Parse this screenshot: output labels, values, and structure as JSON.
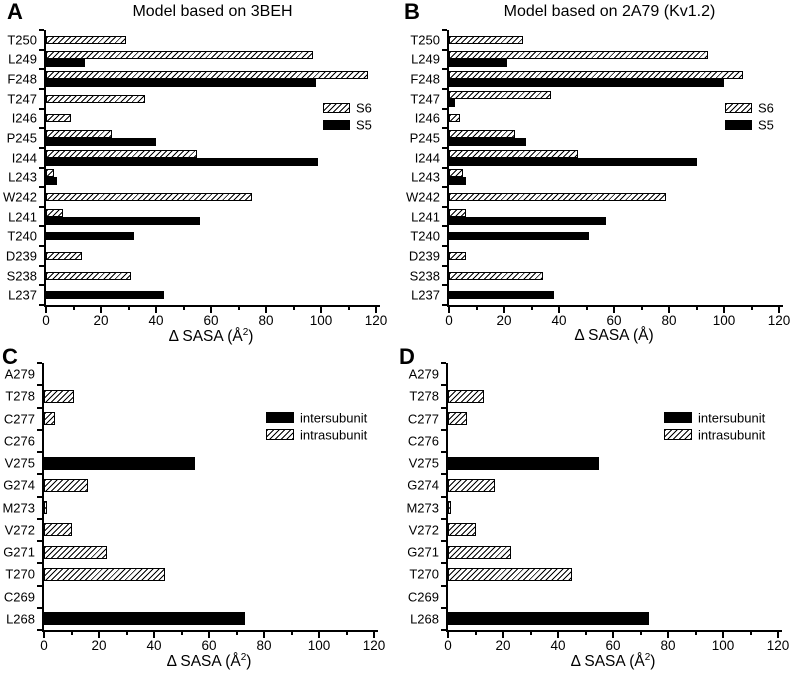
{
  "figure_description": "Four-panel grouped horizontal bar figure of solvent-accessible surface area changes",
  "colors": {
    "bar_solid": "#000000",
    "hatch_line": "#000000",
    "background": "#ffffff",
    "text": "#000000"
  },
  "chart_data": [
    {
      "panel": "A",
      "type": "bar",
      "orientation": "horizontal",
      "title": "Model based on 3BEH",
      "xlabel": "Δ SASA (Å²)",
      "xlabel_parts": {
        "pre": "Δ SASA (Å",
        "sup": "2",
        "post": ")"
      },
      "xlim": [
        0,
        120
      ],
      "xticks": [
        0,
        20,
        40,
        60,
        80,
        100,
        120
      ],
      "minor_tick_step": 10,
      "categories": [
        "T250",
        "L249",
        "F248",
        "T247",
        "I246",
        "P245",
        "I244",
        "L243",
        "W242",
        "L241",
        "T240",
        "D239",
        "S238",
        "L237"
      ],
      "series": [
        {
          "name": "S6",
          "style": "hatched",
          "values": [
            29,
            97,
            117,
            36,
            9,
            24,
            55,
            3,
            75,
            6,
            0,
            13,
            31,
            0
          ]
        },
        {
          "name": "S5",
          "style": "solid",
          "values": [
            0,
            14,
            98,
            0,
            0,
            40,
            99,
            4,
            0,
            56,
            32,
            0,
            0,
            43
          ]
        }
      ],
      "legend_position": "upper-right-inside"
    },
    {
      "panel": "B",
      "type": "bar",
      "orientation": "horizontal",
      "title": "Model based on 2A79 (Kv1.2)",
      "xlabel": "Δ SASA (Å)",
      "xlabel_parts": {
        "pre": "Δ SASA (Å",
        "sup": "",
        "post": ")"
      },
      "xlim": [
        0,
        120
      ],
      "xticks": [
        0,
        20,
        40,
        60,
        80,
        100,
        120
      ],
      "minor_tick_step": 10,
      "categories": [
        "T250",
        "L249",
        "F248",
        "T247",
        "I246",
        "P245",
        "I244",
        "L243",
        "W242",
        "L241",
        "T240",
        "D239",
        "S238",
        "L237"
      ],
      "series": [
        {
          "name": "S6",
          "style": "hatched",
          "values": [
            27,
            94,
            107,
            37,
            4,
            24,
            47,
            5,
            79,
            6,
            0,
            6,
            34,
            0
          ]
        },
        {
          "name": "S5",
          "style": "solid",
          "values": [
            0,
            21,
            100,
            2,
            0,
            28,
            90,
            6,
            0,
            57,
            51,
            0,
            0,
            38
          ]
        }
      ],
      "legend_position": "upper-right-inside"
    },
    {
      "panel": "C",
      "type": "bar",
      "orientation": "horizontal",
      "xlabel": "Δ SASA (Å²)",
      "xlabel_parts": {
        "pre": "Δ SASA (Å",
        "sup": "2",
        "post": ")"
      },
      "xlim": [
        0,
        120
      ],
      "xticks": [
        0,
        20,
        40,
        60,
        80,
        100,
        120
      ],
      "minor_tick_step": 10,
      "categories": [
        "A279",
        "T278",
        "C277",
        "C276",
        "V275",
        "G274",
        "M273",
        "V272",
        "G271",
        "T270",
        "C269",
        "L268"
      ],
      "series": [
        {
          "name": "intersubunit",
          "style": "solid",
          "values": [
            0,
            0,
            0,
            0,
            55,
            0,
            0,
            0,
            0,
            0,
            0,
            73
          ]
        },
        {
          "name": "intrasubunit",
          "style": "hatched",
          "values": [
            0,
            11,
            4,
            0,
            0,
            16,
            1,
            10,
            23,
            44,
            0,
            0
          ]
        }
      ],
      "legend_position": "upper-right-inside"
    },
    {
      "panel": "D",
      "type": "bar",
      "orientation": "horizontal",
      "xlabel": "Δ SASA (Å²)",
      "xlabel_parts": {
        "pre": "Δ SASA (Å",
        "sup": "2",
        "post": ")"
      },
      "xlim": [
        0,
        120
      ],
      "xticks": [
        0,
        20,
        40,
        60,
        80,
        100,
        120
      ],
      "minor_tick_step": 10,
      "categories": [
        "A279",
        "T278",
        "C277",
        "C276",
        "V275",
        "G274",
        "M273",
        "V272",
        "G271",
        "T270",
        "C269",
        "L268"
      ],
      "series": [
        {
          "name": "intersubunit",
          "style": "solid",
          "values": [
            0,
            0,
            0,
            0,
            55,
            0,
            0,
            0,
            0,
            0,
            0,
            73
          ]
        },
        {
          "name": "intrasubunit",
          "style": "hatched",
          "values": [
            0,
            13,
            7,
            0,
            0,
            17,
            1,
            10,
            23,
            45,
            0,
            0
          ]
        }
      ],
      "legend_position": "upper-right-inside"
    }
  ]
}
